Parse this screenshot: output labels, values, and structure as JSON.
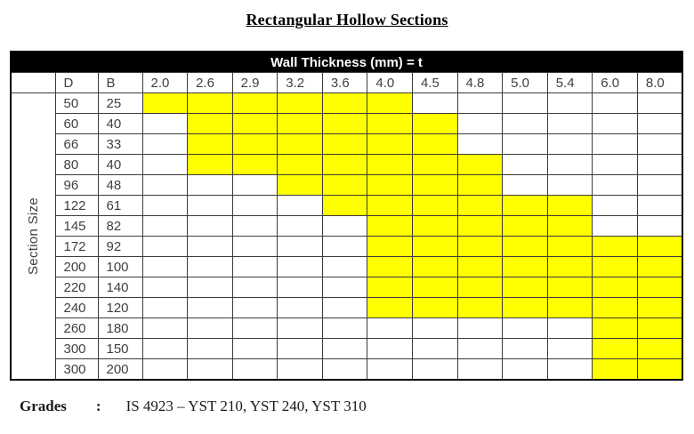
{
  "title": "Rectangular Hollow Sections",
  "table": {
    "header_bar": "Wall Thickness (mm) = t",
    "side_label": "Section Size",
    "col_headers": [
      "D",
      "B",
      "2.0",
      "2.6",
      "2.9",
      "3.2",
      "3.6",
      "4.0",
      "4.5",
      "4.8",
      "5.0",
      "5.4",
      "6.0",
      "8.0"
    ],
    "thickness_values": [
      "2.0",
      "2.6",
      "2.9",
      "3.2",
      "3.6",
      "4.0",
      "4.5",
      "4.8",
      "5.0",
      "5.4",
      "6.0",
      "8.0"
    ],
    "highlight_color": "#FFFF00",
    "rows": [
      {
        "d": "50",
        "b": "25",
        "available": [
          1,
          1,
          1,
          1,
          1,
          1,
          0,
          0,
          0,
          0,
          0,
          0
        ]
      },
      {
        "d": "60",
        "b": "40",
        "available": [
          0,
          1,
          1,
          1,
          1,
          1,
          1,
          0,
          0,
          0,
          0,
          0
        ]
      },
      {
        "d": "66",
        "b": "33",
        "available": [
          0,
          1,
          1,
          1,
          1,
          1,
          1,
          0,
          0,
          0,
          0,
          0
        ]
      },
      {
        "d": "80",
        "b": "40",
        "available": [
          0,
          1,
          1,
          1,
          1,
          1,
          1,
          1,
          0,
          0,
          0,
          0
        ]
      },
      {
        "d": "96",
        "b": "48",
        "available": [
          0,
          0,
          0,
          1,
          1,
          1,
          1,
          1,
          0,
          0,
          0,
          0
        ]
      },
      {
        "d": "122",
        "b": "61",
        "available": [
          0,
          0,
          0,
          0,
          1,
          1,
          1,
          1,
          1,
          1,
          0,
          0
        ]
      },
      {
        "d": "145",
        "b": "82",
        "available": [
          0,
          0,
          0,
          0,
          0,
          1,
          1,
          1,
          1,
          1,
          0,
          0
        ]
      },
      {
        "d": "172",
        "b": "92",
        "available": [
          0,
          0,
          0,
          0,
          0,
          1,
          1,
          1,
          1,
          1,
          1,
          1
        ]
      },
      {
        "d": "200",
        "b": "100",
        "available": [
          0,
          0,
          0,
          0,
          0,
          1,
          1,
          1,
          1,
          1,
          1,
          1
        ]
      },
      {
        "d": "220",
        "b": "140",
        "available": [
          0,
          0,
          0,
          0,
          0,
          1,
          1,
          1,
          1,
          1,
          1,
          1
        ]
      },
      {
        "d": "240",
        "b": "120",
        "available": [
          0,
          0,
          0,
          0,
          0,
          1,
          1,
          1,
          1,
          1,
          1,
          1
        ]
      },
      {
        "d": "260",
        "b": "180",
        "available": [
          0,
          0,
          0,
          0,
          0,
          0,
          0,
          0,
          0,
          0,
          1,
          1
        ]
      },
      {
        "d": "300",
        "b": "150",
        "available": [
          0,
          0,
          0,
          0,
          0,
          0,
          0,
          0,
          0,
          0,
          1,
          1
        ]
      },
      {
        "d": "300",
        "b": "200",
        "available": [
          0,
          0,
          0,
          0,
          0,
          0,
          0,
          0,
          0,
          0,
          1,
          1
        ]
      }
    ]
  },
  "footer": {
    "label": "Grades",
    "separator": ":",
    "value": "IS 4923 – YST 210, YST 240, YST 310"
  }
}
